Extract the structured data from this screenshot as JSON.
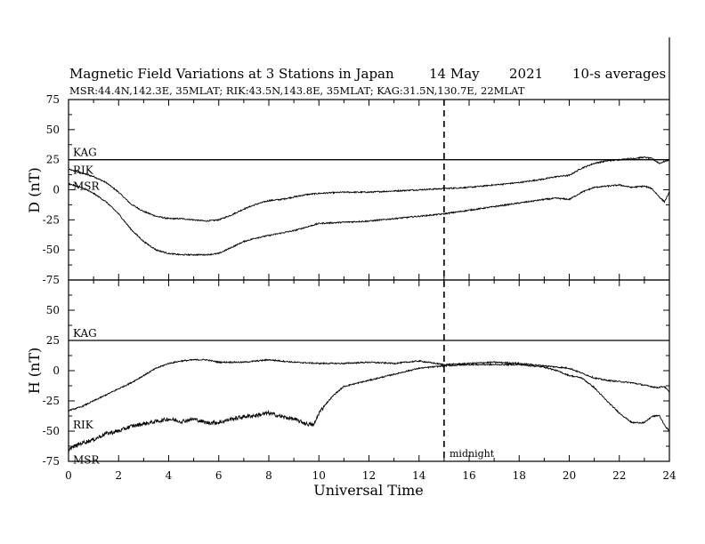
{
  "header": {
    "title": "Magnetic Field Variations at 3 Stations in Japan",
    "date": "14 May",
    "year": "2021",
    "averaging": "10-s averages",
    "stations_line": "MSR:44.4N,142.3E, 35MLAT;  RIK:43.5N,143.8E, 35MLAT;  KAG:31.5N,130.7E, 22MLAT"
  },
  "chart_data": [
    {
      "type": "line",
      "panel": "D",
      "ylabel": "D (nT)",
      "ylim": [
        -75,
        75
      ],
      "yticks": [
        "75",
        "50",
        "25",
        "0",
        "-25",
        "-50",
        "-75"
      ],
      "xlim": [
        0,
        24
      ],
      "trace_labels": [
        "KAG",
        "RIK",
        "MSR"
      ],
      "series": [
        {
          "name": "KAG",
          "x": [
            0,
            24
          ],
          "y": [
            25,
            25
          ]
        },
        {
          "name": "RIK",
          "x": [
            0,
            0.5,
            1,
            1.5,
            2,
            2.5,
            3,
            3.5,
            4,
            4.5,
            5,
            5.5,
            6,
            6.5,
            7,
            7.5,
            8,
            8.5,
            9,
            9.5,
            10,
            11,
            12,
            13,
            14,
            15,
            16,
            17,
            18,
            19,
            19.5,
            20,
            20.5,
            21,
            21.5,
            22,
            22.5,
            23,
            23.3,
            23.6,
            24
          ],
          "y": [
            17,
            14,
            11,
            6,
            -2,
            -12,
            -18,
            -22,
            -24,
            -24,
            -25,
            -26,
            -25,
            -21,
            -16,
            -12,
            -9,
            -8,
            -6,
            -4,
            -3,
            -2,
            -2,
            -1,
            0,
            1,
            2,
            4,
            6,
            9,
            11,
            12,
            18,
            22,
            24,
            25,
            26,
            27,
            26,
            22,
            25
          ]
        },
        {
          "name": "MSR",
          "x": [
            0,
            0.5,
            1,
            1.5,
            2,
            2.5,
            3,
            3.5,
            4,
            4.5,
            5,
            5.5,
            6,
            6.5,
            7,
            7.5,
            8,
            8.5,
            9,
            9.5,
            10,
            11,
            12,
            13,
            14,
            15,
            16,
            17,
            18,
            19,
            19.5,
            20,
            20.5,
            21,
            21.5,
            22,
            22.5,
            23,
            23.3,
            23.6,
            23.8,
            24
          ],
          "y": [
            5,
            2,
            -3,
            -10,
            -20,
            -33,
            -43,
            -50,
            -53,
            -54,
            -54,
            -54,
            -53,
            -48,
            -43,
            -40,
            -38,
            -36,
            -34,
            -31,
            -28,
            -27,
            -26,
            -24,
            -22,
            -20,
            -17,
            -14,
            -11,
            -8,
            -7,
            -8,
            -2,
            2,
            3,
            4,
            2,
            3,
            1,
            -6,
            -10,
            -2
          ]
        }
      ]
    },
    {
      "type": "line",
      "panel": "H",
      "ylabel": "H (nT)",
      "ylim": [
        -75,
        75
      ],
      "yticks": [
        "75",
        "50",
        "25",
        "0",
        "-25",
        "-50",
        "-75"
      ],
      "xlim": [
        0,
        24
      ],
      "trace_labels": [
        "KAG",
        "RIK",
        "MSR"
      ],
      "series": [
        {
          "name": "KAG",
          "x": [
            0,
            24
          ],
          "y": [
            25,
            25
          ]
        },
        {
          "name": "RIK",
          "x": [
            0,
            0.5,
            1,
            1.5,
            2,
            2.5,
            3,
            3.5,
            4,
            4.5,
            5,
            5.5,
            6,
            7,
            8,
            9,
            10,
            11,
            12,
            13,
            14,
            15,
            16,
            17,
            18,
            19,
            20,
            20.5,
            21,
            21.5,
            22,
            22.5,
            23,
            23.5,
            23.8,
            24
          ],
          "y": [
            -33,
            -30,
            -25,
            -20,
            -15,
            -10,
            -4,
            2,
            6,
            8,
            9,
            9,
            7,
            7,
            9,
            7,
            6,
            6,
            7,
            6,
            8,
            5,
            6,
            7,
            6,
            4,
            2,
            -2,
            -6,
            -8,
            -9,
            -10,
            -12,
            -14,
            -13,
            -18
          ]
        },
        {
          "name": "MSR",
          "x": [
            0,
            0.5,
            1,
            1.5,
            2,
            2.5,
            3,
            3.5,
            4,
            4.5,
            5,
            5.5,
            6,
            6.5,
            7,
            7.5,
            8,
            8.5,
            9,
            9.5,
            9.8,
            10,
            10.3,
            10.6,
            11,
            12,
            13,
            14,
            15,
            16,
            17,
            18,
            19,
            19.5,
            20,
            20.5,
            21,
            21.5,
            22,
            22.5,
            23,
            23.3,
            23.6,
            23.8,
            24
          ],
          "y": [
            -65,
            -60,
            -57,
            -52,
            -50,
            -46,
            -44,
            -42,
            -40,
            -42,
            -40,
            -43,
            -43,
            -40,
            -38,
            -37,
            -35,
            -38,
            -40,
            -44,
            -45,
            -35,
            -27,
            -20,
            -13,
            -8,
            -3,
            2,
            4,
            5,
            5,
            5,
            3,
            0,
            -4,
            -6,
            -14,
            -25,
            -35,
            -43,
            -43,
            -38,
            -37,
            -45,
            -50
          ]
        }
      ]
    }
  ],
  "xaxis": {
    "label": "Universal Time",
    "ticks": [
      "0",
      "2",
      "4",
      "6",
      "8",
      "10",
      "12",
      "14",
      "16",
      "18",
      "20",
      "22",
      "24"
    ]
  },
  "midnight": {
    "x": 15,
    "label": "midnight"
  },
  "colors": {
    "line": "#000000",
    "background": "#ffffff"
  }
}
